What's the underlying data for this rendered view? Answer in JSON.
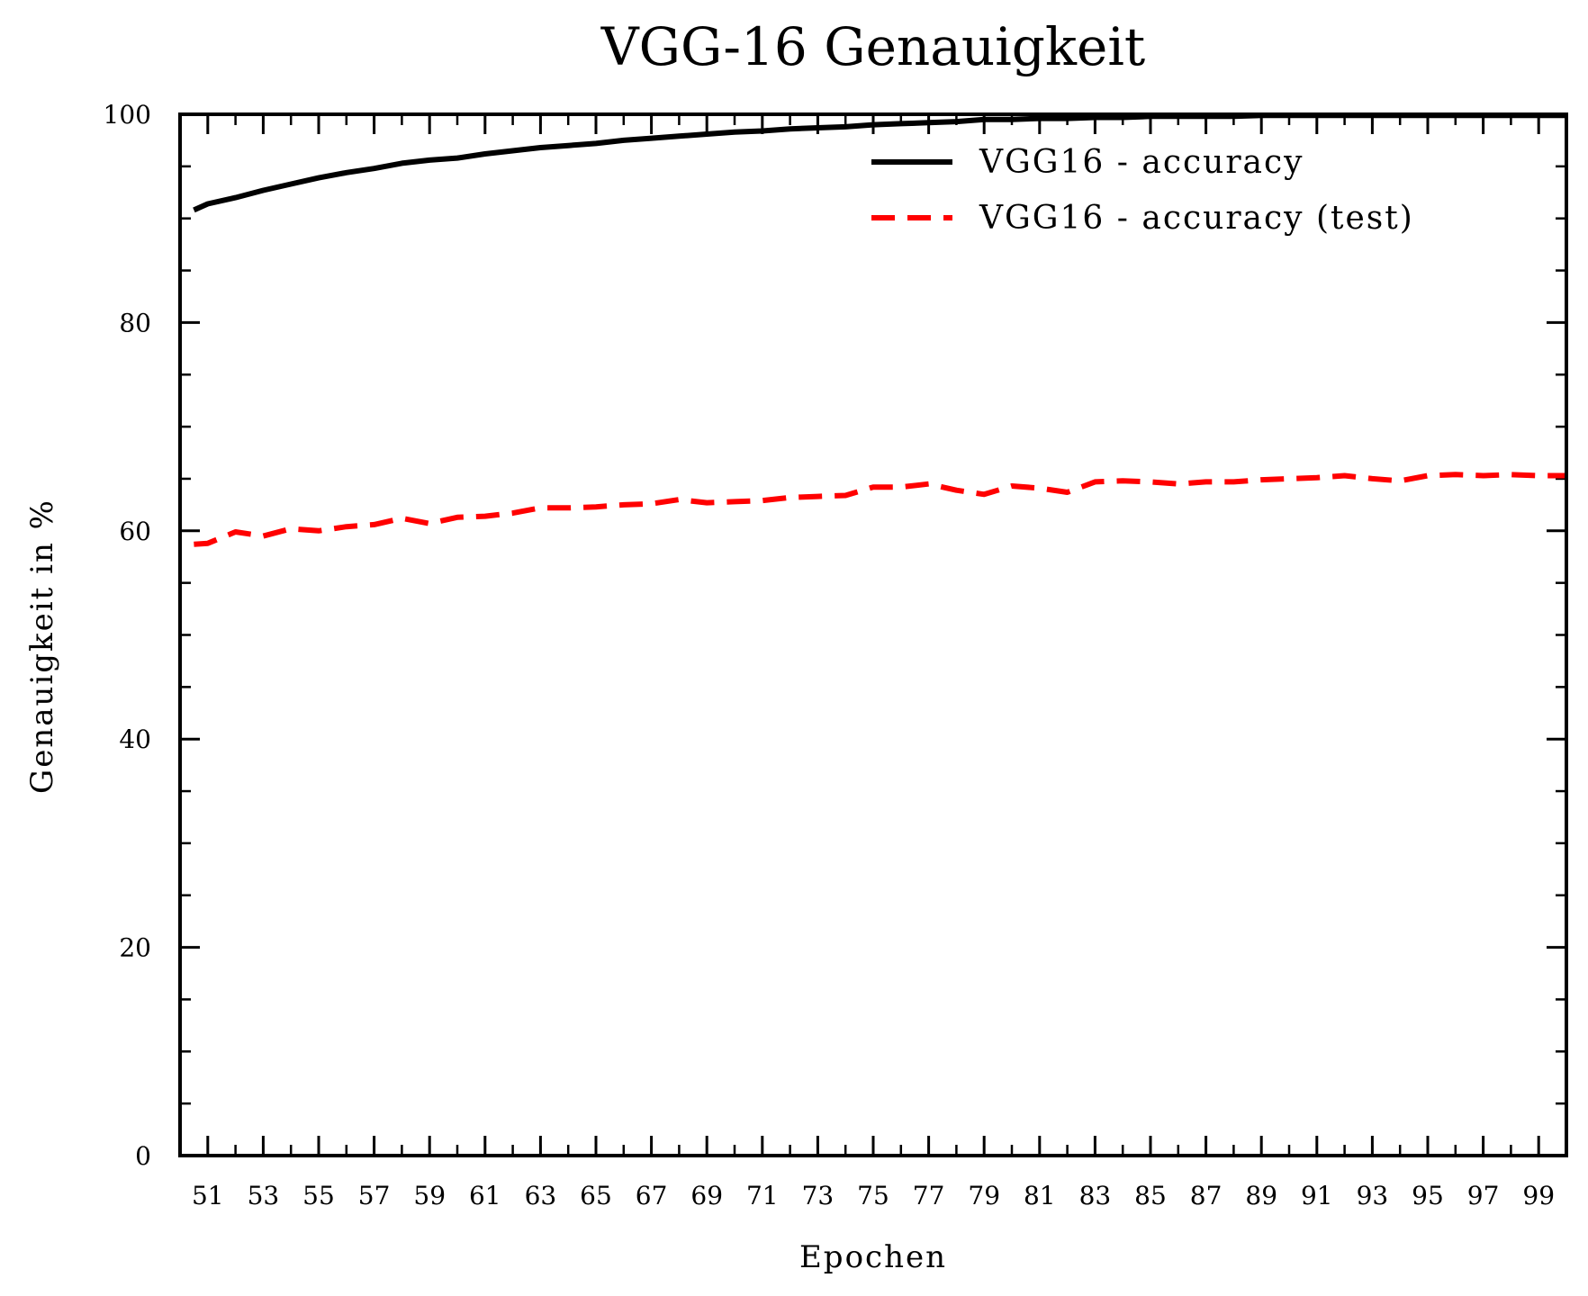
{
  "chart_data": {
    "type": "line",
    "title": "VGG-16 Genauigkeit",
    "xlabel": "Epochen",
    "ylabel": "Genauigkeit in %",
    "xlim": [
      50,
      100
    ],
    "ylim": [
      0,
      100
    ],
    "x_ticks": [
      51,
      53,
      55,
      57,
      59,
      61,
      63,
      65,
      67,
      69,
      71,
      73,
      75,
      77,
      79,
      81,
      83,
      85,
      87,
      89,
      91,
      93,
      95,
      97,
      99
    ],
    "y_ticks": [
      0,
      20,
      40,
      60,
      80,
      100
    ],
    "grid": false,
    "legend_position": "top-right",
    "x": [
      50.5,
      51,
      52,
      53,
      54,
      55,
      56,
      57,
      58,
      59,
      60,
      61,
      62,
      63,
      64,
      65,
      66,
      67,
      68,
      69,
      70,
      71,
      72,
      73,
      74,
      75,
      76,
      77,
      78,
      79,
      80,
      81,
      82,
      83,
      84,
      85,
      86,
      87,
      88,
      89,
      90,
      91,
      92,
      93,
      94,
      95,
      96,
      97,
      98,
      99,
      100
    ],
    "series": [
      {
        "name": "VGG16 - accuracy",
        "color": "#000000",
        "style": "solid",
        "values": [
          90.8,
          91.4,
          92.0,
          92.7,
          93.3,
          93.9,
          94.4,
          94.8,
          95.3,
          95.6,
          95.8,
          96.2,
          96.5,
          96.8,
          97.0,
          97.2,
          97.5,
          97.7,
          97.9,
          98.1,
          98.3,
          98.4,
          98.6,
          98.7,
          98.8,
          99.0,
          99.1,
          99.2,
          99.3,
          99.5,
          99.5,
          99.6,
          99.6,
          99.7,
          99.7,
          99.8,
          99.8,
          99.8,
          99.8,
          99.9,
          99.9,
          99.9,
          99.9,
          99.9,
          99.9,
          99.9,
          99.9,
          99.9,
          99.9,
          99.9,
          99.9
        ]
      },
      {
        "name": "VGG16 - accuracy (test)",
        "color": "#ff0000",
        "style": "dashed",
        "values": [
          58.7,
          58.8,
          59.9,
          59.5,
          60.2,
          60.0,
          60.4,
          60.6,
          61.2,
          60.7,
          61.3,
          61.4,
          61.7,
          62.2,
          62.2,
          62.3,
          62.5,
          62.6,
          63.0,
          62.7,
          62.8,
          62.9,
          63.2,
          63.3,
          63.4,
          64.2,
          64.2,
          64.5,
          63.9,
          63.5,
          64.3,
          64.1,
          63.7,
          64.7,
          64.8,
          64.7,
          64.5,
          64.7,
          64.7,
          64.9,
          65.0,
          65.1,
          65.3,
          65.0,
          64.8,
          65.3,
          65.4,
          65.3,
          65.4,
          65.3,
          65.3
        ]
      }
    ]
  }
}
